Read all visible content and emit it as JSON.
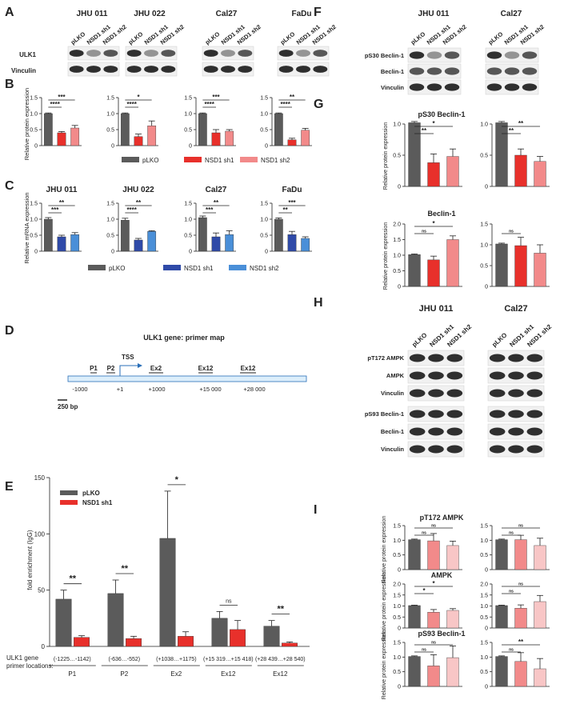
{
  "colors": {
    "gray": "#5b5b5b",
    "red": "#e8302b",
    "pink": "#f28a8a",
    "lightpink": "#f8c6c6",
    "blue": "#2f4aa8",
    "lightblue": "#4a8fd8",
    "text": "#222222"
  },
  "panel_letters": [
    "A",
    "B",
    "C",
    "D",
    "E",
    "F",
    "G",
    "H",
    "I"
  ],
  "panel_A": {
    "cell_lines": [
      "JHU 011",
      "JHU 022",
      "Cal27",
      "FaDu"
    ],
    "lane_labels": [
      "pLKO",
      "NSD1 sh1",
      "NSD1 sh2"
    ],
    "row_labels": [
      "ULK1",
      "Vinculin"
    ]
  },
  "panel_B": {
    "ylabel": "Relative protein expression",
    "legend": [
      "pLKO",
      "NSD1 sh1",
      "NSD1 sh2"
    ],
    "charts": [
      {
        "values": [
          1.0,
          0.4,
          0.55
        ],
        "errors": [
          0.02,
          0.04,
          0.08
        ],
        "sig": [
          "****",
          "***"
        ]
      },
      {
        "values": [
          1.0,
          0.28,
          0.62
        ],
        "errors": [
          0.02,
          0.08,
          0.15
        ],
        "sig": [
          "****",
          "*"
        ]
      },
      {
        "values": [
          1.0,
          0.4,
          0.45
        ],
        "errors": [
          0.02,
          0.1,
          0.05
        ],
        "sig": [
          "****",
          "***"
        ]
      },
      {
        "values": [
          1.0,
          0.18,
          0.48
        ],
        "errors": [
          0.02,
          0.05,
          0.06
        ],
        "sig": [
          "****",
          "**"
        ]
      }
    ]
  },
  "panel_C": {
    "titles": [
      "JHU 011",
      "JHU 022",
      "Cal27",
      "FaDu"
    ],
    "ylabel": "Relative mRNA expression",
    "legend": [
      "pLKO",
      "NSD1 sh1",
      "NSD1 sh2"
    ],
    "charts": [
      {
        "values": [
          1.0,
          0.45,
          0.52
        ],
        "errors": [
          0.05,
          0.05,
          0.06
        ],
        "sig": [
          "***",
          "**"
        ]
      },
      {
        "values": [
          0.97,
          0.35,
          0.62
        ],
        "errors": [
          0.06,
          0.05,
          0.02
        ],
        "sig": [
          "****",
          "**"
        ]
      },
      {
        "values": [
          1.05,
          0.45,
          0.52
        ],
        "errors": [
          0.05,
          0.12,
          0.12
        ],
        "sig": [
          "***",
          "**"
        ]
      },
      {
        "values": [
          1.0,
          0.52,
          0.4
        ],
        "errors": [
          0.04,
          0.1,
          0.05
        ],
        "sig": [
          "**",
          "***"
        ]
      }
    ]
  },
  "panel_D": {
    "title": "ULK1 gene: primer map",
    "primers": [
      "P1",
      "P2",
      "Ex2",
      "Ex12",
      "Ex12"
    ],
    "tss": "TSS",
    "positions": [
      "-1000",
      "+1",
      "+1000",
      "+15 000",
      "+28 000"
    ],
    "scale": "250 bp"
  },
  "panel_E": {
    "ylabel": "fold enrichment (IgG)",
    "ticks": [
      "0",
      "50",
      "100",
      "150"
    ],
    "legend": [
      "pLKO",
      "NSD1 sh1"
    ],
    "row_label": "ULK1 gene primer locations:",
    "groups": [
      {
        "label": "P1",
        "range": "(-1225…-1142)",
        "values": [
          42,
          8
        ],
        "errors": [
          8,
          1.5
        ],
        "sig": "**"
      },
      {
        "label": "P2",
        "range": "(-636…-552)",
        "values": [
          47,
          7
        ],
        "errors": [
          12,
          2
        ],
        "sig": "**"
      },
      {
        "label": "Ex2",
        "range": "(+1038…+1175)",
        "values": [
          96,
          9
        ],
        "errors": [
          42,
          4
        ],
        "sig": "*"
      },
      {
        "label": "Ex12",
        "range": "(+15 319…+15 418)",
        "values": [
          25,
          15
        ],
        "errors": [
          6,
          8
        ],
        "sig": "ns"
      },
      {
        "label": "Ex12",
        "range": "(+28 439…+28 540)",
        "values": [
          18,
          3
        ],
        "errors": [
          5,
          1
        ],
        "sig": "**"
      }
    ],
    "chart_data": {
      "type": "bar",
      "title": "",
      "xlabel": "ULK1 gene primer locations",
      "ylabel": "fold enrichment (IgG)",
      "ylim": [
        0,
        150
      ],
      "categories": [
        "P1",
        "P2",
        "Ex2",
        "Ex12",
        "Ex12"
      ],
      "series": [
        {
          "name": "pLKO",
          "values": [
            42,
            47,
            96,
            25,
            18
          ]
        },
        {
          "name": "NSD1 sh1",
          "values": [
            8,
            7,
            9,
            15,
            3
          ]
        }
      ]
    }
  },
  "panel_F": {
    "cell_lines": [
      "JHU 011",
      "Cal27"
    ],
    "lane_labels": [
      "pLKO",
      "NSD1 sh1",
      "NSD1 sh2"
    ],
    "row_labels": [
      "pS30 Beclin-1",
      "Beclin-1",
      "Vinculin"
    ]
  },
  "panel_G": {
    "titles": [
      "pS30 Beclin-1",
      "Beclin-1"
    ],
    "ylabel": "Relative protein expression",
    "charts": [
      {
        "values": [
          1.02,
          0.38,
          0.48
        ],
        "errors": [
          0.02,
          0.14,
          0.12
        ],
        "sig": [
          "**",
          "*"
        ],
        "ylim": 1.0,
        "ticks": [
          "0",
          "0.5",
          "1.0"
        ]
      },
      {
        "values": [
          1.02,
          0.5,
          0.4
        ],
        "errors": [
          0.02,
          0.1,
          0.08
        ],
        "sig": [
          "**",
          "**"
        ],
        "ylim": 1.0,
        "ticks": [
          "0",
          "0.5",
          "1.0"
        ]
      },
      {
        "values": [
          1.02,
          0.85,
          1.5
        ],
        "errors": [
          0.02,
          0.12,
          0.12
        ],
        "sig": [
          "ns",
          "*"
        ],
        "ylim": 2.0,
        "ticks": [
          "0",
          "0.5",
          "1.0",
          "1.5",
          "2.0"
        ]
      },
      {
        "values": [
          1.02,
          0.98,
          0.8
        ],
        "errors": [
          0.02,
          0.2,
          0.2
        ],
        "sig": [
          "ns"
        ],
        "ylim": 1.5,
        "ticks": [
          "0",
          "0.5",
          "1.0",
          "1.5"
        ]
      }
    ]
  },
  "panel_H": {
    "cell_lines": [
      "JHU 011",
      "Cal27"
    ],
    "lane_labels": [
      "pLKO",
      "NSD1 sh1",
      "NSD1 sh2"
    ],
    "row_labels": [
      "pT172 AMPK",
      "AMPK",
      "Vinculin",
      "pS93 Beclin-1",
      "Beclin-1",
      "Vinculin"
    ]
  },
  "panel_I": {
    "titles": [
      "pT172 AMPK",
      "AMPK",
      "pS93 Beclin-1"
    ],
    "ylabel": "Relative protein expression",
    "charts": [
      {
        "values": [
          1.02,
          0.98,
          0.82
        ],
        "errors": [
          0.02,
          0.25,
          0.15
        ],
        "sig": [
          "ns",
          "ns"
        ],
        "ticks": [
          "0",
          "0.5",
          "1.0",
          "1.5"
        ]
      },
      {
        "values": [
          1.02,
          1.02,
          0.82
        ],
        "errors": [
          0.02,
          0.15,
          0.25
        ],
        "sig": [
          "ns",
          "ns"
        ],
        "ticks": [
          "0",
          "0.5",
          "1.0",
          "1.5"
        ]
      },
      {
        "values": [
          1.02,
          0.72,
          0.8
        ],
        "errors": [
          0.02,
          0.12,
          0.08
        ],
        "sig": [
          "*",
          "*"
        ],
        "ticks": [
          "0",
          "0.5",
          "1.0",
          "1.5",
          "2.0"
        ]
      },
      {
        "values": [
          1.02,
          0.9,
          1.2
        ],
        "errors": [
          0.02,
          0.15,
          0.28
        ],
        "sig": [
          "ns",
          "ns"
        ],
        "ticks": [
          "0",
          "0.5",
          "1.0",
          "1.5",
          "2.0"
        ]
      },
      {
        "values": [
          1.02,
          0.7,
          0.98
        ],
        "errors": [
          0.02,
          0.38,
          0.4
        ],
        "sig": [
          "ns",
          "ns"
        ],
        "ticks": [
          "0",
          "0.5",
          "1.0",
          "1.5"
        ]
      },
      {
        "values": [
          1.02,
          0.85,
          0.6
        ],
        "errors": [
          0.02,
          0.3,
          0.35
        ],
        "sig": [
          "ns",
          "**"
        ],
        "ticks": [
          "0",
          "0.5",
          "1.0",
          "1.5"
        ]
      }
    ]
  }
}
